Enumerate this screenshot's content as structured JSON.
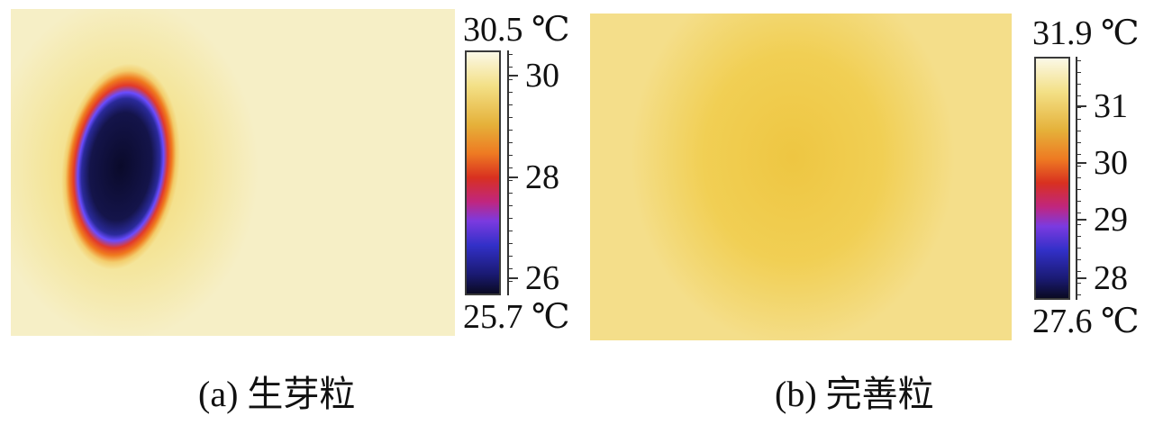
{
  "panel_a": {
    "max_label": "30.5 ℃",
    "min_label": "25.7 ℃",
    "tick_labels": [
      "30",
      "28",
      "26"
    ],
    "caption": "(a) 生芽粒"
  },
  "panel_b": {
    "max_label": "31.9 ℃",
    "min_label": "27.6 ℃",
    "tick_labels": [
      "31",
      "30",
      "29",
      "28"
    ],
    "caption": "(b) 完善粒"
  },
  "colors": {
    "colormap": [
      "#fbf8e6",
      "#f3e086",
      "#e5b13a",
      "#ee7a22",
      "#d83020",
      "#c0267f",
      "#7b3ae0",
      "#3230c8",
      "#1a1a72",
      "#0a0a22"
    ]
  }
}
